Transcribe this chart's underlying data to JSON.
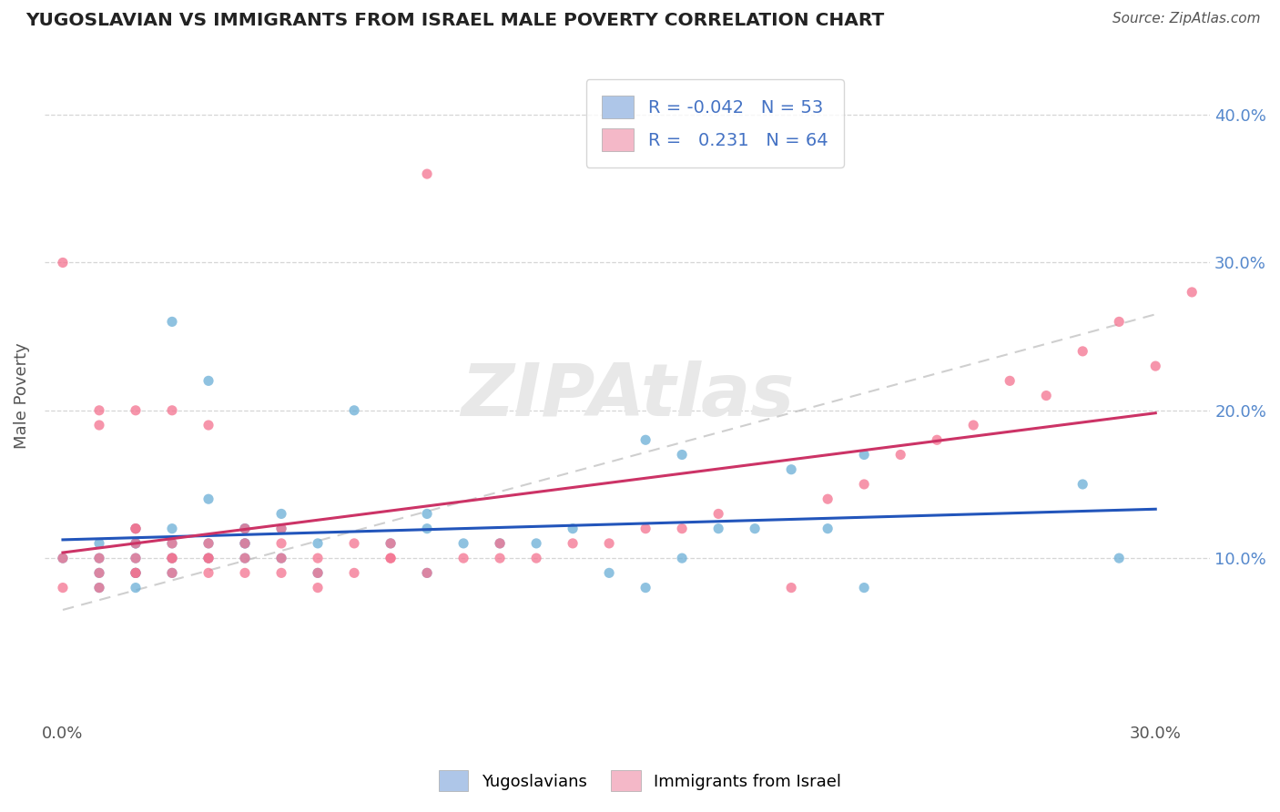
{
  "title": "YUGOSLAVIAN VS IMMIGRANTS FROM ISRAEL MALE POVERTY CORRELATION CHART",
  "source": "Source: ZipAtlas.com",
  "ylabel": "Male Poverty",
  "xlim": [
    -0.005,
    0.315
  ],
  "ylim": [
    -0.01,
    0.43
  ],
  "x_ticks": [
    0.0,
    0.3
  ],
  "x_tick_labels": [
    "0.0%",
    "30.0%"
  ],
  "y_ticks": [
    0.1,
    0.2,
    0.3,
    0.4
  ],
  "y_tick_labels_right": [
    "10.0%",
    "20.0%",
    "30.0%",
    "40.0%"
  ],
  "series1_color": "#6aaed6",
  "series2_color": "#f4728f",
  "trend1_color": "#2255bb",
  "trend2_color": "#cc3366",
  "trend_dash_color": "#bbbbbb",
  "watermark_color": "#e8e8e8",
  "right_axis_color": "#5588cc",
  "legend_box_color": "#aec6e8",
  "legend_box_color2": "#f4b8c8",
  "legend_text_color": "#4472c4",
  "background_color": "#ffffff",
  "R1": -0.042,
  "N1": 53,
  "R2": 0.231,
  "N2": 64,
  "yugoslav_x": [
    0.0,
    0.01,
    0.01,
    0.01,
    0.01,
    0.02,
    0.02,
    0.02,
    0.02,
    0.02,
    0.02,
    0.02,
    0.03,
    0.03,
    0.03,
    0.03,
    0.04,
    0.04,
    0.04,
    0.04,
    0.05,
    0.05,
    0.05,
    0.05,
    0.05,
    0.06,
    0.06,
    0.06,
    0.07,
    0.07,
    0.08,
    0.09,
    0.1,
    0.1,
    0.1,
    0.11,
    0.12,
    0.13,
    0.14,
    0.15,
    0.16,
    0.16,
    0.17,
    0.17,
    0.18,
    0.19,
    0.2,
    0.21,
    0.22,
    0.22,
    0.28,
    0.29,
    0.03
  ],
  "yugoslav_y": [
    0.1,
    0.1,
    0.11,
    0.09,
    0.08,
    0.11,
    0.12,
    0.1,
    0.09,
    0.09,
    0.11,
    0.08,
    0.11,
    0.12,
    0.26,
    0.1,
    0.22,
    0.1,
    0.11,
    0.14,
    0.12,
    0.1,
    0.11,
    0.11,
    0.12,
    0.1,
    0.12,
    0.13,
    0.09,
    0.11,
    0.2,
    0.11,
    0.12,
    0.13,
    0.09,
    0.11,
    0.11,
    0.11,
    0.12,
    0.09,
    0.08,
    0.18,
    0.1,
    0.17,
    0.12,
    0.12,
    0.16,
    0.12,
    0.08,
    0.17,
    0.15,
    0.1,
    0.09
  ],
  "israel_x": [
    0.0,
    0.0,
    0.0,
    0.01,
    0.01,
    0.01,
    0.01,
    0.01,
    0.02,
    0.02,
    0.02,
    0.02,
    0.02,
    0.02,
    0.02,
    0.03,
    0.03,
    0.03,
    0.03,
    0.03,
    0.04,
    0.04,
    0.04,
    0.04,
    0.04,
    0.05,
    0.05,
    0.05,
    0.05,
    0.06,
    0.06,
    0.06,
    0.06,
    0.07,
    0.07,
    0.07,
    0.08,
    0.08,
    0.09,
    0.09,
    0.09,
    0.1,
    0.1,
    0.11,
    0.12,
    0.12,
    0.13,
    0.14,
    0.15,
    0.16,
    0.17,
    0.18,
    0.2,
    0.21,
    0.22,
    0.23,
    0.24,
    0.25,
    0.26,
    0.27,
    0.28,
    0.29,
    0.3,
    0.31
  ],
  "israel_y": [
    0.08,
    0.1,
    0.3,
    0.08,
    0.09,
    0.1,
    0.19,
    0.2,
    0.09,
    0.09,
    0.1,
    0.11,
    0.12,
    0.12,
    0.2,
    0.09,
    0.1,
    0.1,
    0.11,
    0.2,
    0.09,
    0.1,
    0.1,
    0.11,
    0.19,
    0.09,
    0.1,
    0.11,
    0.12,
    0.09,
    0.1,
    0.11,
    0.12,
    0.08,
    0.09,
    0.1,
    0.09,
    0.11,
    0.1,
    0.1,
    0.11,
    0.09,
    0.36,
    0.1,
    0.1,
    0.11,
    0.1,
    0.11,
    0.11,
    0.12,
    0.12,
    0.13,
    0.08,
    0.14,
    0.15,
    0.17,
    0.18,
    0.19,
    0.22,
    0.21,
    0.24,
    0.26,
    0.23,
    0.28
  ]
}
